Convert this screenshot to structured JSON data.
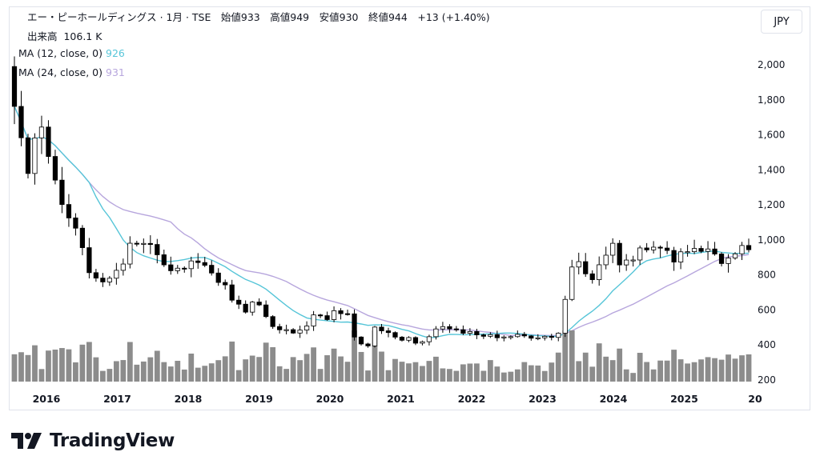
{
  "header": {
    "title": "エー・ピーホールディングス · 1月 · TSE",
    "ohlc": "始値933　高値949　安値930　終値944　+13 (+1.40%)",
    "volume_label": "出来高",
    "volume_value": "106.1 K"
  },
  "indicators": [
    {
      "label": "MA (12, close, 0)",
      "value": "926",
      "color": "#56c5d8"
    },
    {
      "label": "MA (24, close, 0)",
      "value": "931",
      "color": "#b7a6dd"
    }
  ],
  "currency_button": "JPY",
  "brand": "TradingView",
  "colors": {
    "up": "#ffffff",
    "down": "#000000",
    "outline": "#000000",
    "volume": "#8c8c8c",
    "ma12": "#56c5d8",
    "ma24": "#b7a6dd"
  },
  "chart_data": {
    "type": "candlestick",
    "interval": "1M",
    "y_axis": {
      "ticks": [
        200,
        400,
        600,
        800,
        1000,
        1200,
        1400,
        1600,
        1800,
        2000
      ],
      "tick_labels": [
        "200",
        "400",
        "600",
        "800",
        "1,000",
        "1,200",
        "1,400",
        "1,600",
        "1,800",
        "2,000"
      ],
      "range": [
        170,
        2100
      ],
      "position": "right"
    },
    "x_axis": {
      "labels": [
        "2016",
        "2017",
        "2018",
        "2019",
        "2020",
        "2021",
        "2022",
        "2023",
        "2024",
        "2025",
        "20"
      ]
    },
    "close_path": [
      1980,
      1600,
      1420,
      1680,
      1520,
      1220,
      1160,
      960,
      820,
      740,
      780,
      880,
      960,
      980,
      950,
      860,
      800,
      840,
      880,
      840,
      790,
      720,
      650,
      590,
      660,
      560,
      500,
      480,
      460,
      510,
      560,
      560,
      600,
      560,
      440,
      390,
      510,
      470,
      450,
      430,
      410,
      450,
      500,
      500,
      480,
      465,
      455,
      450,
      450,
      450,
      450,
      450,
      450,
      450,
      470,
      850,
      900,
      760,
      860,
      960,
      880,
      900,
      960,
      980,
      940,
      900,
      930,
      960,
      950,
      920,
      880,
      900,
      944
    ],
    "volume_note": "volume bars shown at bottom of pane; latest volume 106.1 K",
    "series": [
      {
        "name": "MA (12, close, 0)",
        "last": 926
      },
      {
        "name": "MA (24, close, 0)",
        "last": 931
      }
    ]
  }
}
